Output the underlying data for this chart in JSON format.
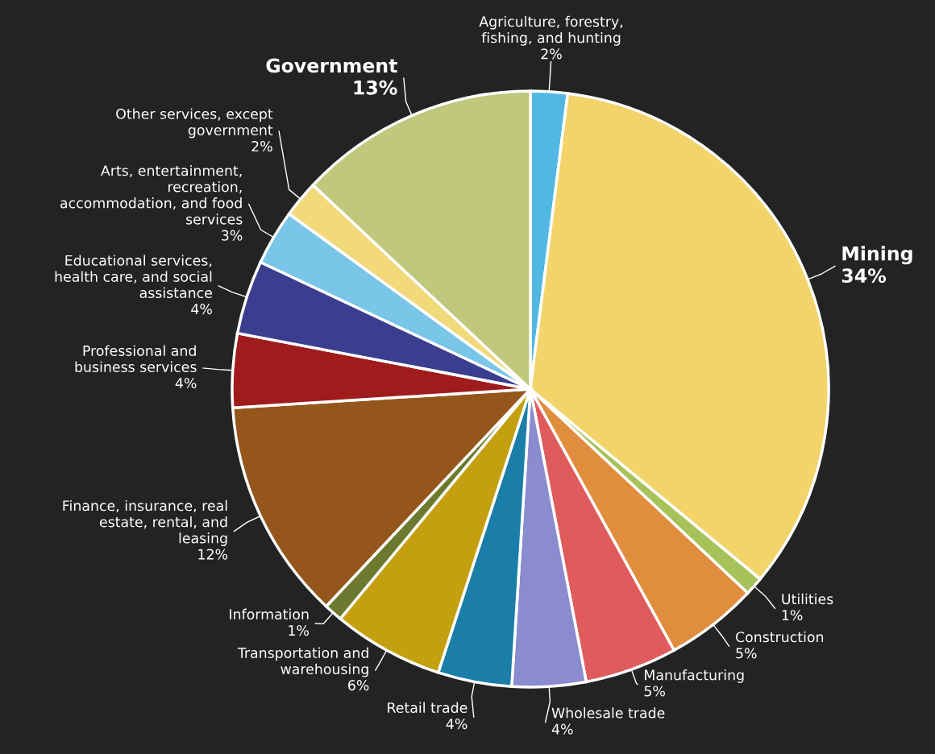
{
  "chart_data": {
    "type": "pie",
    "categories": [
      "Agriculture, forestry, fishing, and hunting",
      "Mining",
      "Utilities",
      "Construction",
      "Manufacturing",
      "Wholesale trade",
      "Retail trade",
      "Transportation and warehousing",
      "Information",
      "Finance, insurance, real estate, rental, and leasing",
      "Professional and business services",
      "Educational services, health care, and social assistance",
      "Arts, entertainment, recreation, accommodation, and food services",
      "Other services, except government",
      "Government"
    ],
    "values": [
      2,
      34,
      1,
      5,
      5,
      4,
      4,
      6,
      1,
      12,
      4,
      4,
      3,
      2,
      13
    ],
    "value_labels": [
      "2%",
      "34%",
      "1%",
      "5%",
      "5%",
      "4%",
      "4%",
      "6%",
      "1%",
      "12%",
      "4%",
      "4%",
      "3%",
      "2%",
      "13%"
    ],
    "colors": [
      "#52b8e3",
      "#f2d46b",
      "#a8c25a",
      "#e08e3e",
      "#e05c5c",
      "#8b8bcf",
      "#1a7ea8",
      "#c49f10",
      "#6b7a2e",
      "#94561b",
      "#a01c1c",
      "#3b3e8f",
      "#79c6e8",
      "#f2d97a",
      "#bfc87c"
    ]
  }
}
